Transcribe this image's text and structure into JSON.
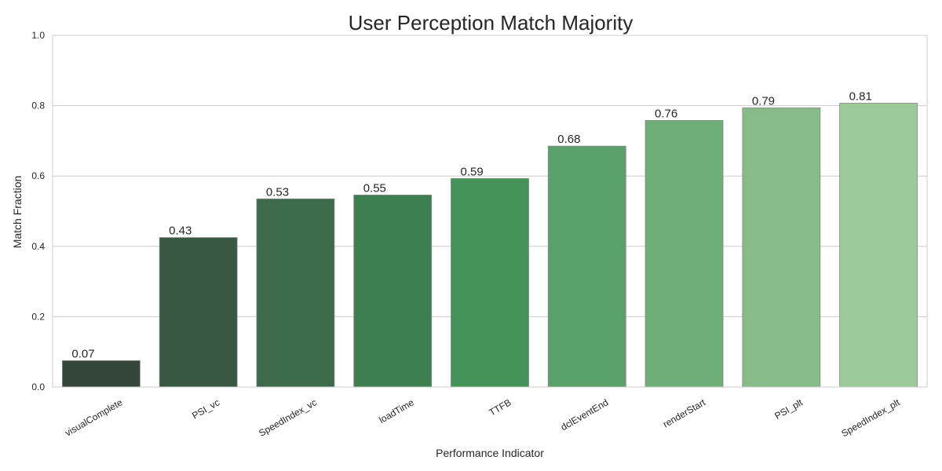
{
  "chart_data": {
    "type": "bar",
    "title": "User Perception Match Majority",
    "xlabel": "Performance Indicator",
    "ylabel": "Match Fraction",
    "ylim": [
      0,
      1.0
    ],
    "yticks": [
      "0.0",
      "0.2",
      "0.4",
      "0.6",
      "0.8",
      "1.0"
    ],
    "grid": true,
    "categories": [
      "visualComplete",
      "PSI_vc",
      "SpeedIndex_vc",
      "loadTime",
      "TTFB",
      "dclEventEnd",
      "renderStart",
      "PSI_plt",
      "SpeedIndex_plt"
    ],
    "values": [
      0.075,
      0.425,
      0.535,
      0.546,
      0.593,
      0.685,
      0.758,
      0.794,
      0.807
    ],
    "value_labels": [
      "0.07",
      "0.43",
      "0.53",
      "0.55",
      "0.59",
      "0.68",
      "0.76",
      "0.79",
      "0.81"
    ],
    "colors": [
      "#35463a",
      "#385843",
      "#3c6a4a",
      "#3e7f51",
      "#449358",
      "#5aa06a",
      "#6fad79",
      "#88bb8a",
      "#9ccb99"
    ]
  }
}
